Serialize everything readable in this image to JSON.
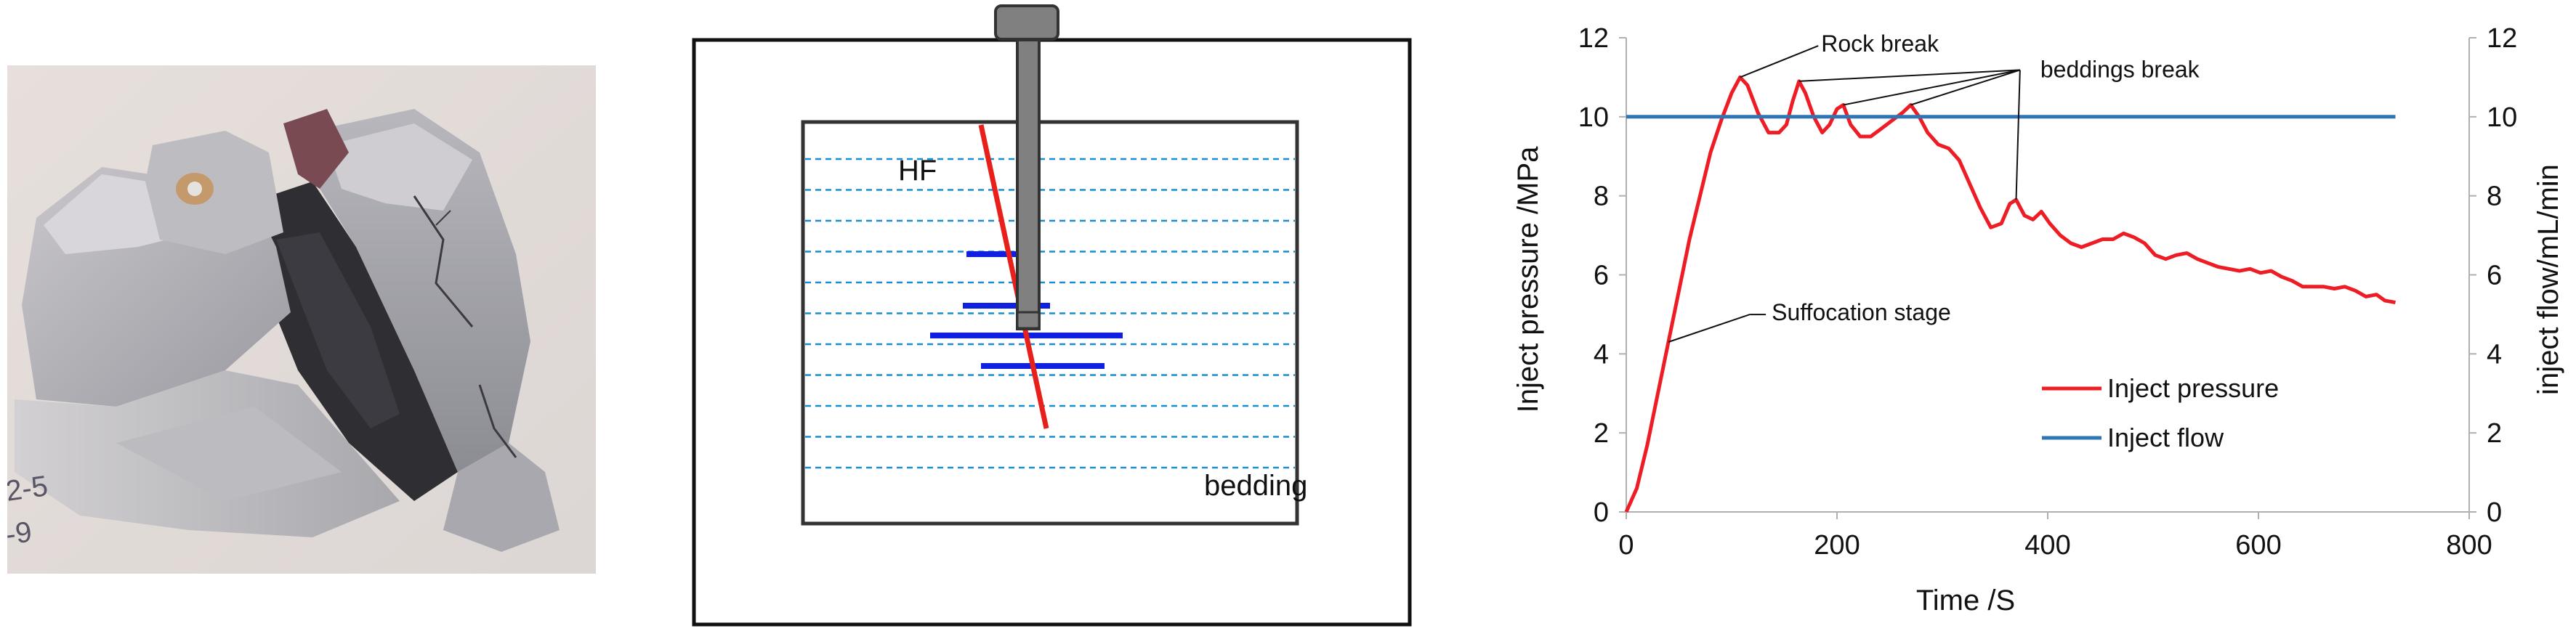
{
  "photo": {
    "handwriting": [
      "2-5",
      "-9"
    ]
  },
  "schematic": {
    "fracture_label": "HF",
    "bedding_label": "bedding",
    "colors": {
      "frame": "#111111",
      "rod": "#808080",
      "bedding_lines": "#1a8fd0",
      "fracture": "#e8201c",
      "broken_beddings": "#1020e0"
    }
  },
  "chart_data": {
    "type": "line",
    "xlabel": "Time /S",
    "ylabel_left": "Inject pressure /MPa",
    "ylabel_right": "inject flow/mL/min",
    "xlim": [
      0,
      800
    ],
    "ylim_left": [
      0,
      12
    ],
    "ylim_right": [
      0,
      12
    ],
    "xticks": [
      0,
      200,
      400,
      600,
      800
    ],
    "yticks_left": [
      0,
      2,
      4,
      6,
      8,
      10,
      12
    ],
    "yticks_right": [
      0,
      2,
      4,
      6,
      8,
      10,
      12
    ],
    "grid": false,
    "legend_position": "bottom-right inside plot",
    "series": [
      {
        "name": "Inject pressure",
        "color": "#ee1c24",
        "axis": "left",
        "points": [
          [
            0,
            0
          ],
          [
            10,
            0.6
          ],
          [
            20,
            1.7
          ],
          [
            30,
            3.0
          ],
          [
            40,
            4.3
          ],
          [
            50,
            5.6
          ],
          [
            60,
            6.9
          ],
          [
            70,
            8.0
          ],
          [
            80,
            9.1
          ],
          [
            90,
            9.9
          ],
          [
            100,
            10.6
          ],
          [
            108,
            11.0
          ],
          [
            115,
            10.8
          ],
          [
            125,
            10.1
          ],
          [
            135,
            9.6
          ],
          [
            145,
            9.6
          ],
          [
            152,
            9.8
          ],
          [
            158,
            10.4
          ],
          [
            164,
            10.9
          ],
          [
            170,
            10.6
          ],
          [
            178,
            10.0
          ],
          [
            186,
            9.6
          ],
          [
            193,
            9.8
          ],
          [
            200,
            10.2
          ],
          [
            206,
            10.3
          ],
          [
            213,
            9.8
          ],
          [
            222,
            9.5
          ],
          [
            232,
            9.5
          ],
          [
            242,
            9.7
          ],
          [
            252,
            9.9
          ],
          [
            262,
            10.1
          ],
          [
            270,
            10.3
          ],
          [
            278,
            10.0
          ],
          [
            286,
            9.6
          ],
          [
            296,
            9.3
          ],
          [
            306,
            9.2
          ],
          [
            316,
            8.9
          ],
          [
            326,
            8.3
          ],
          [
            336,
            7.7
          ],
          [
            346,
            7.2
          ],
          [
            356,
            7.3
          ],
          [
            364,
            7.8
          ],
          [
            370,
            7.9
          ],
          [
            378,
            7.5
          ],
          [
            386,
            7.4
          ],
          [
            394,
            7.6
          ],
          [
            402,
            7.3
          ],
          [
            412,
            7.0
          ],
          [
            422,
            6.8
          ],
          [
            432,
            6.7
          ],
          [
            442,
            6.8
          ],
          [
            452,
            6.9
          ],
          [
            462,
            6.9
          ],
          [
            472,
            7.05
          ],
          [
            482,
            6.95
          ],
          [
            492,
            6.8
          ],
          [
            502,
            6.5
          ],
          [
            512,
            6.4
          ],
          [
            522,
            6.5
          ],
          [
            532,
            6.55
          ],
          [
            542,
            6.4
          ],
          [
            552,
            6.3
          ],
          [
            562,
            6.2
          ],
          [
            572,
            6.15
          ],
          [
            582,
            6.1
          ],
          [
            592,
            6.15
          ],
          [
            602,
            6.05
          ],
          [
            612,
            6.1
          ],
          [
            622,
            5.95
          ],
          [
            632,
            5.85
          ],
          [
            642,
            5.7
          ],
          [
            652,
            5.7
          ],
          [
            662,
            5.7
          ],
          [
            672,
            5.65
          ],
          [
            682,
            5.7
          ],
          [
            692,
            5.6
          ],
          [
            702,
            5.45
          ],
          [
            712,
            5.5
          ],
          [
            720,
            5.35
          ],
          [
            730,
            5.3
          ]
        ]
      },
      {
        "name": "Inject flow",
        "color": "#2e75b6",
        "axis": "right",
        "points": [
          [
            0,
            10
          ],
          [
            730,
            10
          ]
        ]
      }
    ],
    "annotations": [
      {
        "text": "Rock break",
        "label_at": [
          185,
          11.65
        ],
        "targets": [
          [
            108,
            11.0
          ]
        ]
      },
      {
        "text": "beddings break",
        "label_at": [
          393,
          11.0
        ],
        "targets": [
          [
            164,
            10.9
          ],
          [
            206,
            10.3
          ],
          [
            270,
            10.3
          ],
          [
            370,
            7.9
          ]
        ]
      },
      {
        "text": "Suffocation stage",
        "label_at": [
          138,
          4.85
        ],
        "targets": [
          [
            40,
            4.3
          ]
        ]
      }
    ]
  }
}
